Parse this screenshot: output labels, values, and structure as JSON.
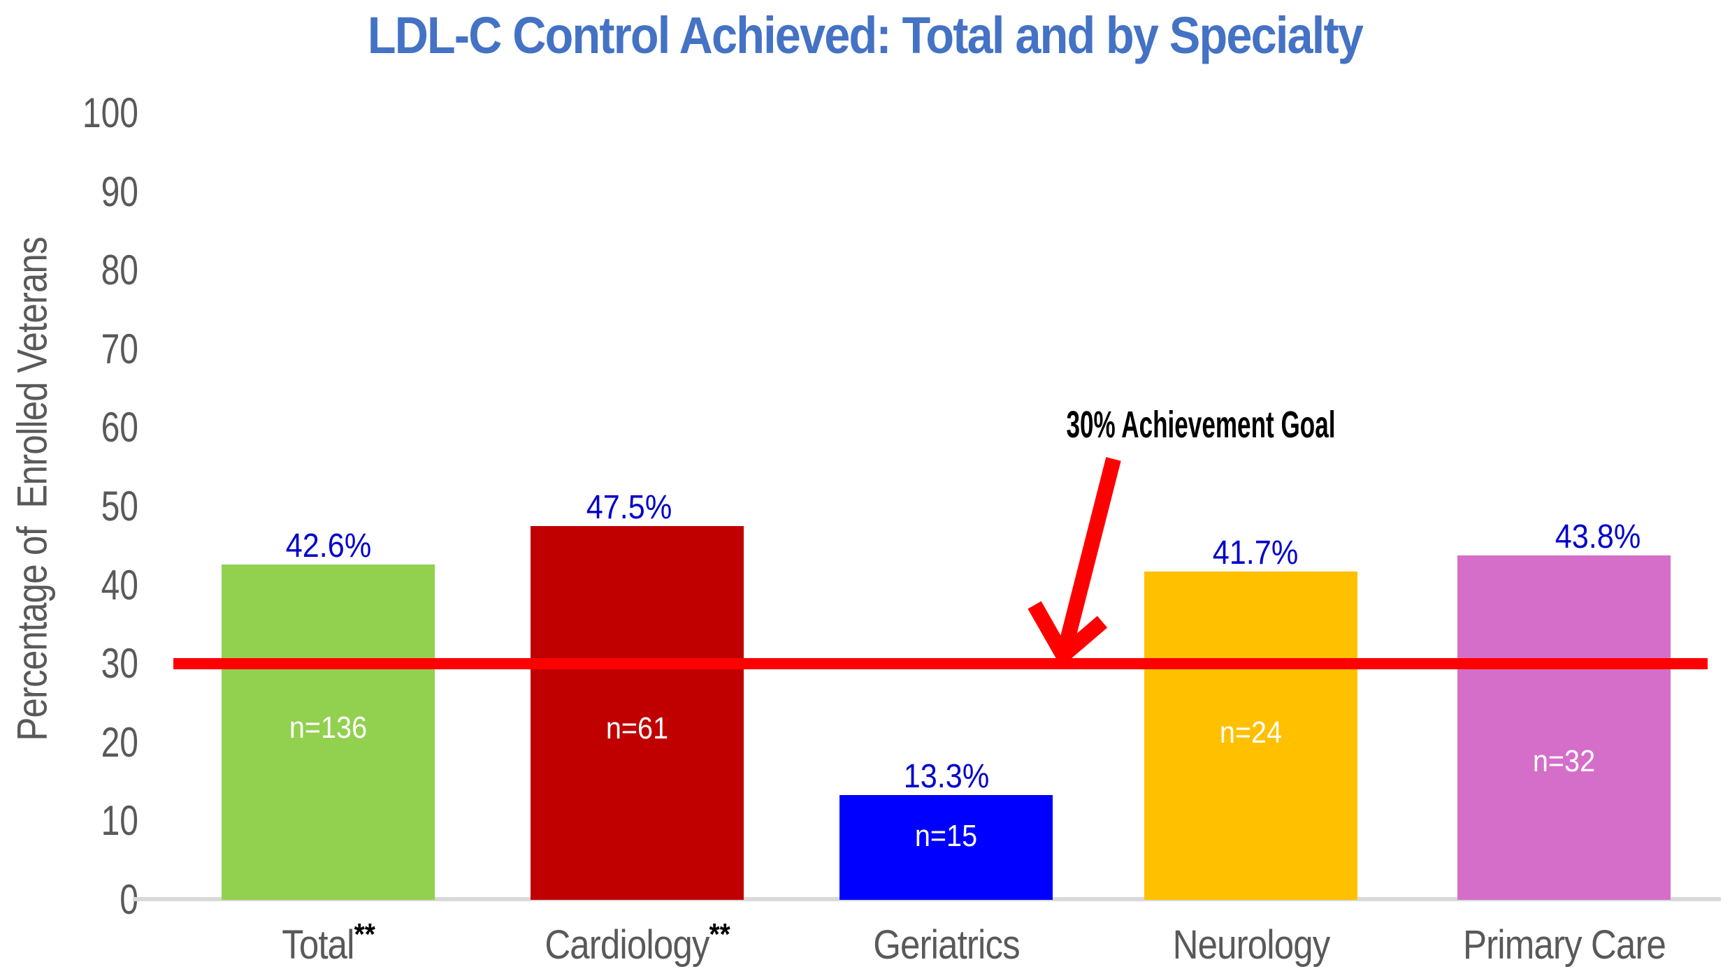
{
  "colors": {
    "title": "#4472C4",
    "axis_text": "#595959",
    "value_text": "#0000CC",
    "n_text": "#FFFFFF",
    "axis_line": "#D9D9D9",
    "superscript": "#000000",
    "annotation_text": "#000000"
  },
  "chart_data": {
    "type": "bar",
    "title": "LDL-C Control Achieved: Total and by Specialty",
    "ylabel": "Percentage of  Enrolled Veterans",
    "xlabel": "",
    "categories": [
      "Total",
      "Cardiology",
      "Geriatrics",
      "Neurology",
      "Primary Care"
    ],
    "category_superscripts": [
      "**",
      "**",
      "",
      "",
      ""
    ],
    "values": [
      42.6,
      47.5,
      13.3,
      41.7,
      43.8
    ],
    "value_labels": [
      "42.6%",
      "47.5%",
      "13.3%",
      "41.7%",
      "43.8%"
    ],
    "n_labels": [
      "n=136",
      "n=61",
      "n=15",
      "n=24",
      "n=32"
    ],
    "bar_colors": [
      "#92D050",
      "#C00000",
      "#0000FF",
      "#FFC000",
      "#D46EC9"
    ],
    "ylim": [
      0,
      100
    ],
    "yticks": [
      0,
      10,
      20,
      30,
      40,
      50,
      60,
      70,
      80,
      90,
      100
    ],
    "grid": "off",
    "legend": "none",
    "reference_line": {
      "value": 30,
      "color": "#FF0000",
      "label": "30% Achievement Goal"
    }
  }
}
